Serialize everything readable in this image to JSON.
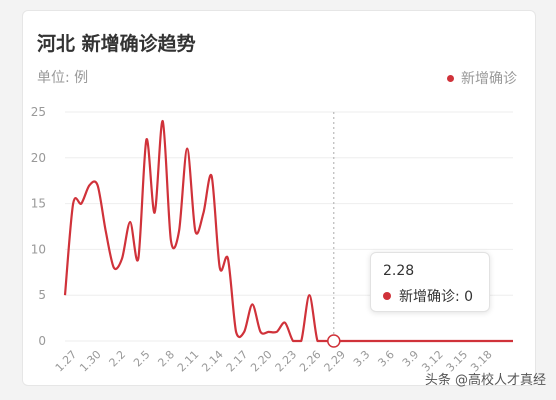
{
  "card": {
    "title": "河北 新增确诊趋势",
    "unit_label": "单位: 例"
  },
  "legend": {
    "label": "新增确诊"
  },
  "tooltip": {
    "date": "2.28",
    "label": "新增确诊: 0"
  },
  "watermark": "头条 @高校人才真经",
  "colors": {
    "series": "#d0323a",
    "axis_text": "#999999",
    "grid": "#eeeeee"
  },
  "chart_data": {
    "type": "line",
    "title": "河北 新增确诊趋势",
    "ylabel": "单位: 例",
    "ylim": [
      0,
      25
    ],
    "yticks": [
      0,
      5,
      10,
      15,
      20,
      25
    ],
    "x": [
      "1.26",
      "1.27",
      "1.28",
      "1.29",
      "1.30",
      "1.31",
      "2.1",
      "2.2",
      "2.3",
      "2.4",
      "2.5",
      "2.6",
      "2.7",
      "2.8",
      "2.9",
      "2.10",
      "2.11",
      "2.12",
      "2.13",
      "2.14",
      "2.15",
      "2.16",
      "2.17",
      "2.18",
      "2.19",
      "2.20",
      "2.21",
      "2.22",
      "2.23",
      "2.24",
      "2.25",
      "2.26",
      "2.27",
      "2.28",
      "2.29",
      "3.1",
      "3.2",
      "3.3",
      "3.4",
      "3.5",
      "3.6",
      "3.7",
      "3.8",
      "3.9",
      "3.10",
      "3.11",
      "3.12",
      "3.13",
      "3.14",
      "3.15",
      "3.16",
      "3.17",
      "3.18",
      "3.19",
      "3.20",
      "3.21"
    ],
    "xtick_labels": [
      "1.27",
      "1.30",
      "2.2",
      "2.5",
      "2.8",
      "2.11",
      "2.14",
      "2.17",
      "2.20",
      "2.23",
      "2.26",
      "2.29",
      "3.3",
      "3.6",
      "3.9",
      "3.12",
      "3.15",
      "3.18"
    ],
    "series": [
      {
        "name": "新增确诊",
        "values": [
          5,
          15,
          15,
          17,
          17,
          12,
          8,
          9,
          13,
          9,
          22,
          14,
          24,
          11,
          12,
          21,
          12,
          14,
          18,
          8,
          9,
          1,
          1,
          4,
          1,
          1,
          1,
          2,
          0,
          0,
          5,
          0,
          0,
          0,
          0,
          0,
          0,
          0,
          0,
          0,
          0,
          0,
          0,
          0,
          0,
          0,
          0,
          0,
          0,
          0,
          0,
          0,
          0,
          0,
          0,
          0
        ]
      }
    ],
    "highlight": {
      "x": "2.28",
      "value": 0
    },
    "grid": true,
    "legend_position": "top-right"
  }
}
